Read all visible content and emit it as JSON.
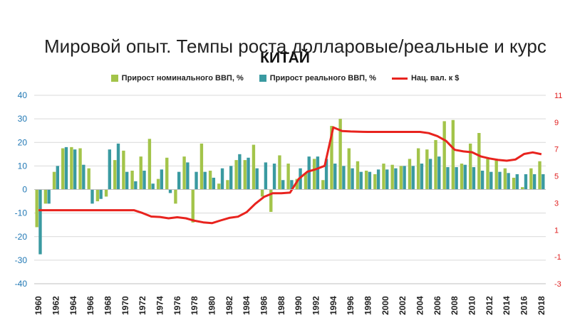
{
  "slide": {
    "title": "Мировой опыт. Темпы роста долларовые/реальные и курс"
  },
  "chart_data": {
    "type": "bar",
    "title": "КИТАЙ",
    "x": [
      1960,
      1961,
      1962,
      1963,
      1964,
      1965,
      1966,
      1967,
      1968,
      1969,
      1970,
      1971,
      1972,
      1973,
      1974,
      1975,
      1976,
      1977,
      1978,
      1979,
      1980,
      1981,
      1982,
      1983,
      1984,
      1985,
      1986,
      1987,
      1988,
      1989,
      1990,
      1991,
      1992,
      1993,
      1994,
      1995,
      1996,
      1997,
      1998,
      1999,
      2000,
      2001,
      2002,
      2003,
      2004,
      2005,
      2006,
      2007,
      2008,
      2009,
      2010,
      2011,
      2012,
      2013,
      2014,
      2015,
      2016,
      2017,
      2018
    ],
    "x_tick_labels": [
      "1960",
      "1962",
      "1964",
      "1966",
      "1968",
      "1970",
      "1972",
      "1974",
      "1976",
      "1978",
      "1980",
      "1982",
      "1984",
      "1986",
      "1988",
      "1990",
      "1992",
      "1994",
      "1996",
      "1998",
      "2000",
      "2002",
      "2004",
      "2006",
      "2008",
      "2010",
      "2012",
      "2014",
      "2016",
      "2018"
    ],
    "y_left": {
      "ylim": [
        -40,
        40
      ],
      "ticks": [
        "40",
        "30",
        "20",
        "10",
        "0",
        "-10",
        "-20",
        "-30",
        "-40"
      ]
    },
    "y_right": {
      "ylim": [
        -3,
        11
      ],
      "ticks": [
        "11",
        "9",
        "7",
        "5",
        "3",
        "1",
        "-1",
        "-3"
      ]
    },
    "series": [
      {
        "name": "Прирост номинального ВВП, %",
        "kind": "bar",
        "axis": "left",
        "color": "#a3c44a",
        "values": [
          -16,
          -6,
          7.5,
          17.5,
          18,
          17.5,
          9,
          -5,
          -3,
          12.5,
          16.5,
          8,
          14,
          21.5,
          4.5,
          13.5,
          -6,
          14,
          -14,
          19.5,
          8,
          2.5,
          4,
          12.5,
          12.5,
          19,
          -3,
          -9.5,
          14.5,
          11,
          4.5,
          7,
          13,
          4,
          27,
          30,
          17.5,
          12,
          8,
          6.5,
          11,
          10.5,
          10,
          13,
          17.5,
          17,
          21,
          29,
          29.5,
          11,
          19.5,
          24,
          13,
          12.5,
          9,
          5,
          1,
          9,
          12
        ]
      },
      {
        "name": "Прирост реального ВВП, %",
        "kind": "bar",
        "axis": "left",
        "color": "#3a9aa1",
        "values": [
          -27.5,
          -6,
          10,
          18,
          17,
          10.5,
          -6,
          -4,
          17,
          19.5,
          7.5,
          3.5,
          8,
          2.5,
          8.5,
          -1.5,
          7.5,
          11.5,
          7.5,
          7.5,
          5,
          9,
          10,
          15,
          13.5,
          9,
          11.5,
          11,
          4,
          4,
          9,
          14,
          14,
          13,
          11,
          10,
          9,
          7.5,
          7.5,
          8.5,
          8.5,
          9,
          10,
          10,
          11,
          13,
          14,
          9.5,
          9.5,
          10.5,
          9.5,
          8,
          7.5,
          7.5,
          7,
          6.5,
          6.5,
          6.5,
          6.5
        ]
      },
      {
        "name": "Нац. вал. к $",
        "kind": "line",
        "axis": "right",
        "color": "#e8231e",
        "values": [
          2.46,
          2.46,
          2.46,
          2.46,
          2.46,
          2.46,
          2.46,
          2.46,
          2.46,
          2.46,
          2.46,
          2.46,
          2.25,
          1.99,
          1.96,
          1.86,
          1.94,
          1.86,
          1.68,
          1.56,
          1.5,
          1.7,
          1.89,
          1.98,
          2.32,
          2.94,
          3.45,
          3.72,
          3.72,
          3.77,
          4.78,
          5.32,
          5.51,
          5.76,
          8.62,
          8.35,
          8.31,
          8.29,
          8.28,
          8.28,
          8.28,
          8.28,
          8.28,
          8.28,
          8.28,
          8.19,
          7.97,
          7.61,
          6.95,
          6.83,
          6.77,
          6.46,
          6.31,
          6.2,
          6.14,
          6.23,
          6.64,
          6.76,
          6.62
        ]
      }
    ]
  },
  "colors": {
    "left_axis": "#1f77b4",
    "right_axis": "#e02020",
    "grid": "#d9d9d9"
  }
}
